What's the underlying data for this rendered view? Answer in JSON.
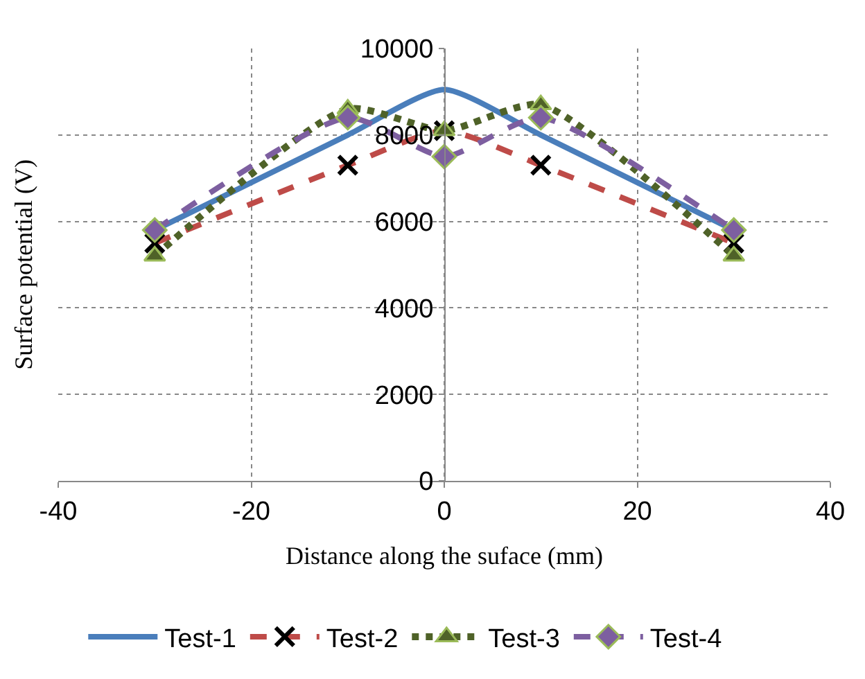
{
  "chart_data": {
    "type": "line",
    "xlabel": "Distance along the suface (mm)",
    "ylabel": "Surface potential (V)",
    "x": [
      -30,
      -10,
      0,
      10,
      30
    ],
    "series": [
      {
        "name": "Test-1",
        "color": "#4a7ebb",
        "values": [
          5800,
          8000,
          9050,
          8000,
          5800
        ],
        "marker": "none",
        "line_style": "solid"
      },
      {
        "name": "Test-2",
        "color": "#be4b48",
        "values": [
          5500,
          7300,
          8100,
          7300,
          5500
        ],
        "marker": "cross",
        "line_style": "dashed"
      },
      {
        "name": "Test-3",
        "color": "#4f6228",
        "values": [
          5200,
          8600,
          8100,
          8700,
          5200
        ],
        "marker": "triangle",
        "line_style": "dotted"
      },
      {
        "name": "Test-4",
        "color": "#7d5fa0",
        "values": [
          5800,
          8400,
          7500,
          8400,
          5800
        ],
        "marker": "diamond",
        "line_style": "dashed"
      }
    ],
    "xlim": [
      -40,
      40
    ],
    "xticks": [
      -40,
      -20,
      0,
      20,
      40
    ],
    "ylim": [
      0,
      10000
    ],
    "yticks": [
      0,
      2000,
      4000,
      6000,
      8000,
      10000
    ],
    "grid": true,
    "legend": "bottom"
  }
}
